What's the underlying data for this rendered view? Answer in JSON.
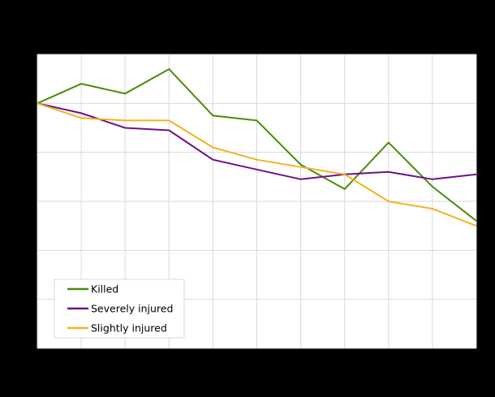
{
  "chart_data": {
    "type": "line",
    "title": "",
    "xlabel": "",
    "ylabel": "",
    "index_base": 100,
    "x": [
      1,
      2,
      3,
      4,
      5,
      6,
      7,
      8,
      9,
      10,
      11
    ],
    "ylim": [
      0,
      120
    ],
    "yticks": [
      0,
      20,
      40,
      60,
      80,
      100,
      120
    ],
    "grid": true,
    "legend_position": "lower left (inside plot)",
    "series": [
      {
        "name": "Killed",
        "color": "#4c8a0a",
        "values": [
          100,
          108,
          104,
          114,
          95,
          93,
          75,
          65,
          84,
          66,
          52
        ]
      },
      {
        "name": "Severely injured",
        "color": "#6e1287",
        "values": [
          100,
          96,
          90,
          89,
          77,
          73,
          69,
          71,
          72,
          69,
          71
        ]
      },
      {
        "name": "Slightly injured",
        "color": "#f0b323",
        "values": [
          100,
          94,
          93,
          93,
          82,
          77,
          74,
          71,
          60,
          57,
          50
        ]
      }
    ]
  },
  "legend": {
    "items": [
      {
        "label": "Killed",
        "color": "#4c8a0a"
      },
      {
        "label": "Severely injured",
        "color": "#6e1287"
      },
      {
        "label": "Slightly injured",
        "color": "#f0b323"
      }
    ]
  },
  "colors": {
    "background": "#000000",
    "plot_background": "#ffffff",
    "gridline": "#d9d9d9"
  }
}
